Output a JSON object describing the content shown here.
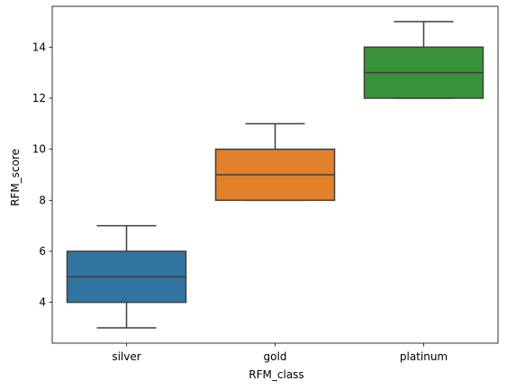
{
  "chart_data": {
    "type": "box",
    "title": "",
    "xlabel": "RFM_class",
    "ylabel": "RFM_score",
    "ylim": [
      2.4,
      15.6
    ],
    "yticks": [
      4,
      6,
      8,
      10,
      12,
      14
    ],
    "grid": false,
    "categories": [
      "silver",
      "gold",
      "platinum"
    ],
    "boxes": [
      {
        "category": "silver",
        "min": 3,
        "q1": 4,
        "median": 5,
        "q3": 6,
        "max": 7,
        "color": "#3274a1"
      },
      {
        "category": "gold",
        "min": 8,
        "q1": 8,
        "median": 9,
        "q3": 10,
        "max": 11,
        "color": "#e1812c"
      },
      {
        "category": "platinum",
        "min": 12,
        "q1": 12,
        "median": 13,
        "q3": 14,
        "max": 15,
        "color": "#3a923a"
      }
    ]
  }
}
